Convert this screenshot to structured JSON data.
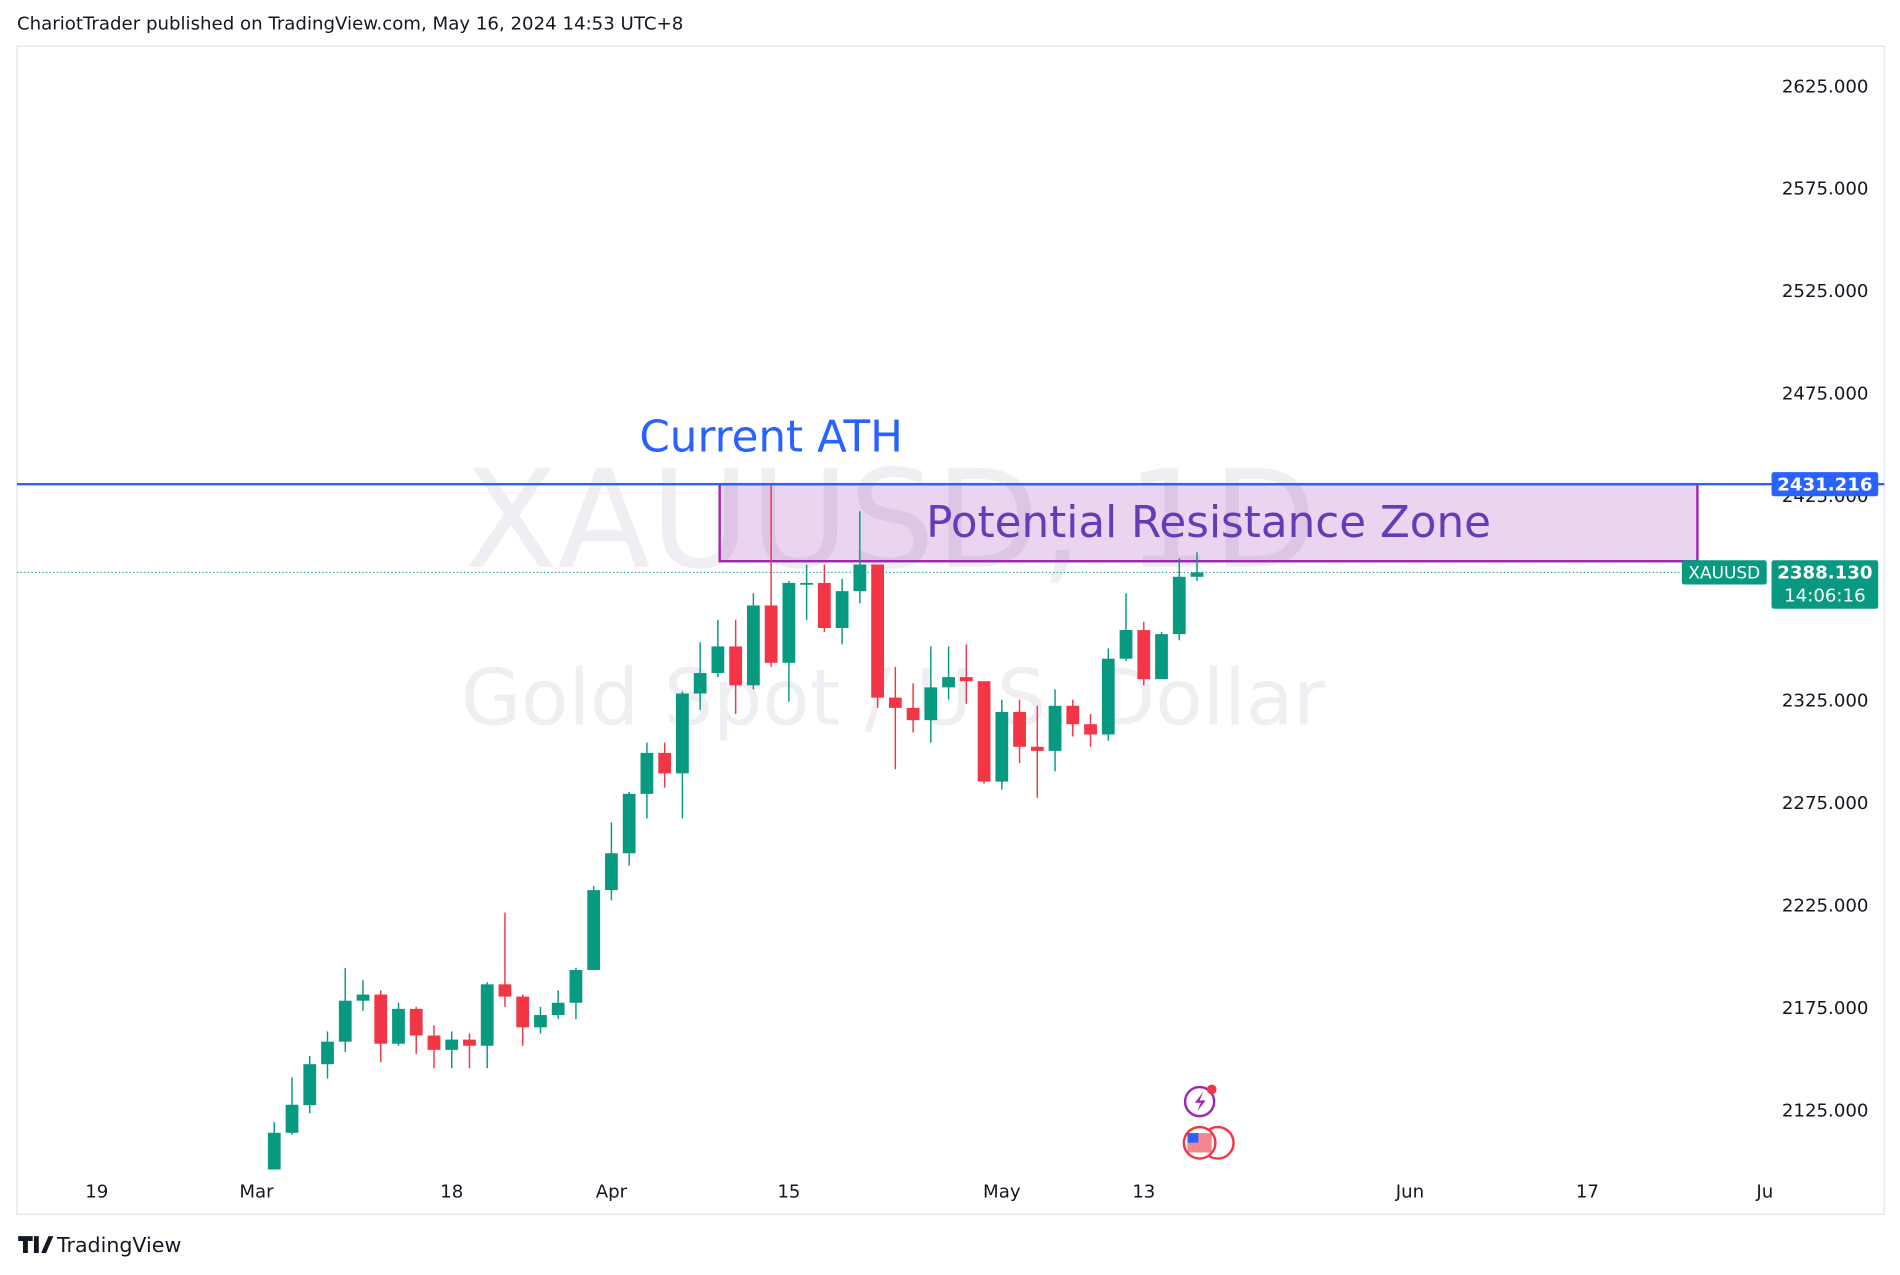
{
  "header": "ChariotTrader published on TradingView.com, May 16, 2024 14:53 UTC+8",
  "footer": "TradingView",
  "chart_data": {
    "type": "candlestick",
    "watermark": "XAUUSD, 1D",
    "description": "Gold Spot / U.S. Dollar",
    "x": [
      10,
      11,
      12,
      13,
      14,
      15,
      16,
      17,
      18,
      19,
      20,
      21,
      22,
      23,
      24,
      25,
      26,
      27,
      28,
      29,
      30,
      31,
      32,
      33,
      34,
      35,
      36,
      37,
      38,
      39,
      40,
      41,
      42,
      43,
      44,
      45,
      46,
      47,
      48,
      49,
      50,
      51,
      52,
      53,
      54,
      55,
      56,
      57,
      58,
      59,
      60,
      61,
      62
    ],
    "open": [
      2082.9,
      2114.5,
      2128,
      2148,
      2159,
      2179,
      2182,
      2158,
      2175,
      2162,
      2155,
      2160,
      2157,
      2187,
      2181,
      2166,
      2172,
      2178,
      2194,
      2233,
      2251,
      2280,
      2300,
      2290,
      2329,
      2339,
      2352,
      2333,
      2372,
      2344,
      2383,
      2383,
      2361,
      2379,
      2392,
      2327,
      2322,
      2316,
      2332,
      2337,
      2335,
      2286,
      2320,
      2303,
      2301,
      2323,
      2314,
      2309,
      2346,
      2360,
      2336,
      2358,
      2386
    ],
    "high": [
      2119.7,
      2141.5,
      2152,
      2164,
      2195,
      2189,
      2184,
      2178,
      2176,
      2167,
      2164,
      2163,
      2188,
      2222,
      2182,
      2176,
      2184,
      2195,
      2235,
      2266,
      2281,
      2305,
      2305,
      2330,
      2354,
      2365,
      2365,
      2378,
      2431.216,
      2384,
      2392,
      2392,
      2385,
      2418,
      2392,
      2342,
      2334,
      2352,
      2352,
      2353,
      2335,
      2326,
      2326,
      2323,
      2331,
      2326,
      2319,
      2351,
      2378,
      2364,
      2359,
      2395,
      2398
    ],
    "low": [
      2078.6,
      2113.5,
      2124,
      2141,
      2154,
      2174,
      2149,
      2157,
      2153,
      2146,
      2146,
      2146,
      2146,
      2176,
      2157,
      2163,
      2170,
      2170,
      2194,
      2228,
      2245,
      2268,
      2283,
      2268,
      2321,
      2337,
      2319,
      2331,
      2342,
      2325,
      2365,
      2359,
      2353,
      2373,
      2322,
      2292,
      2310,
      2305,
      2326,
      2324,
      2285,
      2282,
      2295,
      2278,
      2291,
      2308,
      2303,
      2306,
      2345,
      2333,
      2337,
      2355,
      2384
    ],
    "close": [
      2114.5,
      2128.2,
      2148,
      2159,
      2179,
      2182,
      2158,
      2175,
      2162,
      2155,
      2160,
      2157,
      2187,
      2181,
      2166,
      2172,
      2178,
      2194,
      2233,
      2251,
      2280,
      2300,
      2290,
      2329,
      2339,
      2352,
      2333,
      2372,
      2344,
      2383,
      2383,
      2361,
      2379,
      2392,
      2327,
      2322,
      2316,
      2332,
      2337,
      2335,
      2286,
      2320,
      2303,
      2301,
      2323,
      2314,
      2309,
      2346,
      2360,
      2336,
      2358,
      2386,
      2388.13
    ],
    "up_color": "#089981",
    "down_color": "#f23645",
    "xlim": [
      -4.5,
      93.9
    ],
    "ylim": [
      2096.6,
      2645.1
    ],
    "xticks": [
      {
        "value": 0,
        "label": "19"
      },
      {
        "value": 9,
        "label": "Mar"
      },
      {
        "value": 20,
        "label": "18"
      },
      {
        "value": 29,
        "label": "Apr"
      },
      {
        "value": 39,
        "label": "15"
      },
      {
        "value": 51,
        "label": "May"
      },
      {
        "value": 59,
        "label": "13"
      },
      {
        "value": 74,
        "label": "Jun"
      },
      {
        "value": 84,
        "label": "17"
      },
      {
        "value": 94,
        "label": "Ju"
      }
    ],
    "yticks": [
      {
        "value": 2125,
        "label": "2125.000"
      },
      {
        "value": 2175,
        "label": "2175.000"
      },
      {
        "value": 2225,
        "label": "2225.000"
      },
      {
        "value": 2275,
        "label": "2275.000"
      },
      {
        "value": 2325,
        "label": "2325.000"
      },
      {
        "value": 2425,
        "label": "2425.000"
      },
      {
        "value": 2475,
        "label": "2475.000"
      },
      {
        "value": 2525,
        "label": "2525.000"
      },
      {
        "value": 2575,
        "label": "2575.000"
      },
      {
        "value": 2625,
        "label": "2625.000"
      }
    ],
    "grid": false,
    "ath": {
      "label": "Current ATH",
      "value": 2431.216,
      "color": "#2962ff"
    },
    "zone": {
      "label": "Potential Resistance Zone",
      "x": [
        35.1,
        90.2
      ],
      "y": [
        2393.6,
        2431.216
      ],
      "color": "#9c27b0",
      "text_color": "#673ab7"
    },
    "last_price": {
      "symbol": "XAUUSD",
      "value": 2388.13,
      "label": "2388.130",
      "countdown": "14:06:16"
    }
  }
}
